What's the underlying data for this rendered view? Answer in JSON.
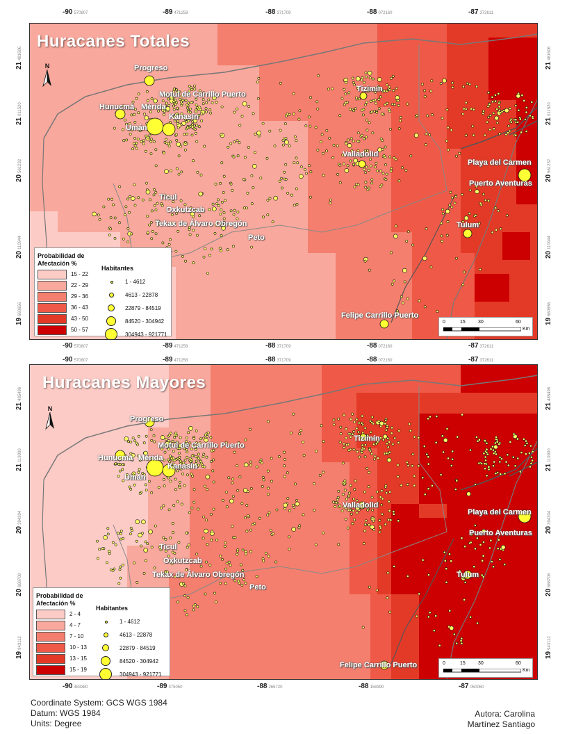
{
  "maps": [
    {
      "title": "Huracanes Totales",
      "lon_ticks_top": [
        {
          "deg": "-90",
          "sub": "570807"
        },
        {
          "deg": "-89",
          "sub": "471258"
        },
        {
          "deg": "-88",
          "sub": "371709"
        },
        {
          "deg": "-88",
          "sub": "072160"
        },
        {
          "deg": "-87",
          "sub": "372611"
        }
      ],
      "lon_ticks_bottom": [
        {
          "deg": "-90",
          "sub": "570807"
        },
        {
          "deg": "-89",
          "sub": "471258"
        },
        {
          "deg": "-88",
          "sub": "371709"
        },
        {
          "deg": "-88",
          "sub": "072160"
        },
        {
          "deg": "-87",
          "sub": "372611"
        }
      ],
      "lat_ticks": [
        {
          "deg": "21",
          "sub": "481606"
        },
        {
          "deg": "21",
          "sub": "011520"
        },
        {
          "deg": "20",
          "sub": "561232"
        },
        {
          "deg": "20",
          "sub": "110944"
        },
        {
          "deg": "19",
          "sub": "660656"
        }
      ],
      "cities": [
        "Progreso",
        "Motul de Carrillo Puerto",
        "Tizimín",
        "Hunucmá",
        "Mérida",
        "Umán",
        "Kanasín",
        "Valladolid",
        "Playa del Carmen",
        "Puerto Aventuras",
        "Ticul",
        "Oxkutzcab",
        "Tekax de Álvaro Obregón",
        "Peto",
        "Tulum",
        "Felipe Carrillo Puerto"
      ],
      "legend_prob": {
        "title_l1": "Probabilidad de",
        "title_l2": "Afectación %",
        "classes": [
          {
            "label": "15 - 22",
            "color": "#fccbc6"
          },
          {
            "label": "22 - 29",
            "color": "#f8a89c"
          },
          {
            "label": "29 - 36",
            "color": "#f47f6e"
          },
          {
            "label": "36 - 43",
            "color": "#ee5a47"
          },
          {
            "label": "43 - 50",
            "color": "#e33a27"
          },
          {
            "label": "50 - 57",
            "color": "#cc0000"
          }
        ]
      },
      "legend_pop": {
        "title": "Habitantes",
        "classes": [
          "1 - 4612",
          "4613 - 22878",
          "22879 - 84519",
          "84520 - 304942",
          "304943 - 921771"
        ]
      },
      "scale": {
        "labels": [
          "0",
          "15",
          "30",
          "60"
        ],
        "unit": "Km"
      }
    },
    {
      "title": "Huracanes Mayores",
      "lon_ticks_top": [
        {
          "deg": "-90",
          "sub": "570807"
        },
        {
          "deg": "-89",
          "sub": "471258"
        },
        {
          "deg": "-88",
          "sub": "371709"
        },
        {
          "deg": "-88",
          "sub": "072160"
        },
        {
          "deg": "-87",
          "sub": "372611"
        }
      ],
      "lon_ticks_bottom": [
        {
          "deg": "-90",
          "sub": "483380"
        },
        {
          "deg": "-89",
          "sub": "375050"
        },
        {
          "deg": "-88",
          "sub": "266720"
        },
        {
          "deg": "-88",
          "sub": "158390"
        },
        {
          "deg": "-87",
          "sub": "050060"
        }
      ],
      "lat_ticks": [
        {
          "deg": "21",
          "sub": "485496"
        },
        {
          "deg": "21",
          "sub": "119900"
        },
        {
          "deg": "20",
          "sub": "394304"
        },
        {
          "deg": "20",
          "sub": "668708"
        },
        {
          "deg": "19",
          "sub": "943112"
        }
      ],
      "cities": [
        "Progreso",
        "Motul de Carrillo Puerto",
        "Tizimín",
        "Hunucmá",
        "Mérida",
        "Umán",
        "Kanasín",
        "Valladolid",
        "Playa del Carmen",
        "Puerto Aventuras",
        "Ticul",
        "Oxkutzcab",
        "Tekax de Álvaro Obregón",
        "Peto",
        "Tulum",
        "Felipe Carrillo Puerto"
      ],
      "legend_prob": {
        "title_l1": "Probabilidad de",
        "title_l2": "Afectación %",
        "classes": [
          {
            "label": "2 - 4",
            "color": "#fccbc6"
          },
          {
            "label": "4 - 7",
            "color": "#f8a89c"
          },
          {
            "label": "7 - 10",
            "color": "#f47f6e"
          },
          {
            "label": "10 - 13",
            "color": "#ee5a47"
          },
          {
            "label": "13 - 15",
            "color": "#e33a27"
          },
          {
            "label": "15 - 19",
            "color": "#cc0000"
          }
        ]
      },
      "legend_pop": {
        "title": "Habitantes",
        "classes": [
          "1 - 4612",
          "4613 - 22878",
          "22879 - 84519",
          "84520 - 304942",
          "304943 - 921771"
        ]
      },
      "scale": {
        "labels": [
          "0",
          "15",
          "30",
          "60"
        ],
        "unit": "Km"
      }
    }
  ],
  "north_label": "N",
  "footer": {
    "coord_system": "Coordinate System: GCS WGS 1984",
    "datum": "Datum: WGS 1984",
    "units": "Units: Degree",
    "author_l1": "Autora: Carolina",
    "author_l2": "Martínez Santiago"
  }
}
